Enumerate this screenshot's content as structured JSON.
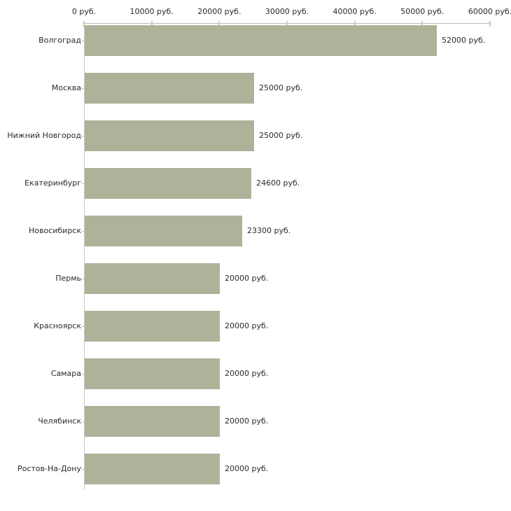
{
  "chart_data": {
    "type": "bar",
    "orientation": "horizontal",
    "title": "",
    "xlabel": "",
    "ylabel": "",
    "unit": "руб.",
    "xlim": [
      0,
      60000
    ],
    "grid": false,
    "legend": false,
    "categories": [
      "Волгоград",
      "Москва",
      "Нижний Новгород",
      "Екатеринбург",
      "Новосибирск",
      "Пермь",
      "Красноярск",
      "Самара",
      "Челябинск",
      "Ростов-На-Дону"
    ],
    "values": [
      52000,
      25000,
      25000,
      24600,
      23300,
      20000,
      20000,
      20000,
      20000,
      20000
    ],
    "value_labels": [
      "52000 руб.",
      "25000 руб.",
      "25000 руб.",
      "24600 руб.",
      "23300 руб.",
      "20000 руб.",
      "20000 руб.",
      "20000 руб.",
      "20000 руб.",
      "20000 руб."
    ],
    "x_ticks": [
      {
        "value": 0,
        "label": "0 руб."
      },
      {
        "value": 10000,
        "label": "10000 руб."
      },
      {
        "value": 20000,
        "label": "20000 руб."
      },
      {
        "value": 30000,
        "label": "30000 руб."
      },
      {
        "value": 40000,
        "label": "40000 руб."
      },
      {
        "value": 50000,
        "label": "50000 руб."
      },
      {
        "value": 60000,
        "label": "60000 руб."
      }
    ],
    "colors": {
      "bar": "#acb399",
      "axis_line": "#b9b9b9",
      "tick": "#c9cba1",
      "text": "#2a2a2a",
      "background": "#ffffff"
    }
  }
}
